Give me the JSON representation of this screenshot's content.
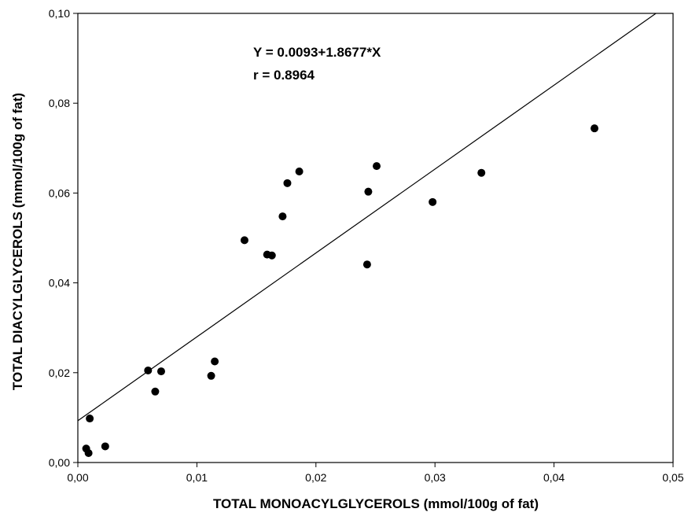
{
  "chart_data": {
    "type": "scatter",
    "xlabel": "TOTAL MONOACYLGLYCEROLS (mmol/100g of fat)",
    "ylabel": "TOTAL DIACYLGLYCEROLS (mmol/100g of fat)",
    "xlim": [
      0,
      0.05
    ],
    "ylim": [
      0,
      0.1
    ],
    "x_ticks": [
      "0,00",
      "0,01",
      "0,02",
      "0,03",
      "0,04",
      "0,05"
    ],
    "y_ticks": [
      "0,00",
      "0,02",
      "0,04",
      "0,06",
      "0,08",
      "0,10"
    ],
    "grid": false,
    "annotations": [
      "Y = 0.0093+1.8677*X",
      "r = 0.8964"
    ],
    "regression": {
      "intercept": 0.0093,
      "slope": 1.8677
    },
    "points": [
      {
        "x": 0.0007,
        "y": 0.0031
      },
      {
        "x": 0.0009,
        "y": 0.0021
      },
      {
        "x": 0.001,
        "y": 0.0098
      },
      {
        "x": 0.0023,
        "y": 0.0036
      },
      {
        "x": 0.0059,
        "y": 0.0205
      },
      {
        "x": 0.0065,
        "y": 0.0158
      },
      {
        "x": 0.007,
        "y": 0.0203
      },
      {
        "x": 0.0112,
        "y": 0.0193
      },
      {
        "x": 0.0115,
        "y": 0.0225
      },
      {
        "x": 0.014,
        "y": 0.0495
      },
      {
        "x": 0.0159,
        "y": 0.0463
      },
      {
        "x": 0.0163,
        "y": 0.0461
      },
      {
        "x": 0.0172,
        "y": 0.0548
      },
      {
        "x": 0.0176,
        "y": 0.0622
      },
      {
        "x": 0.0186,
        "y": 0.0648
      },
      {
        "x": 0.0243,
        "y": 0.0441
      },
      {
        "x": 0.0244,
        "y": 0.0603
      },
      {
        "x": 0.0251,
        "y": 0.066
      },
      {
        "x": 0.0298,
        "y": 0.058
      },
      {
        "x": 0.0339,
        "y": 0.0645
      },
      {
        "x": 0.0434,
        "y": 0.0744
      }
    ]
  }
}
